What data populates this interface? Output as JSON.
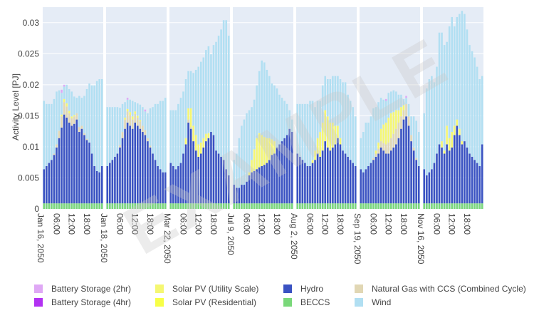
{
  "chart_data": {
    "type": "bar",
    "stacked": true,
    "ylabel": "Activity Level [PJ]",
    "ylim": [
      0,
      0.0325
    ],
    "yticks": [
      "0",
      "0.005",
      "0.01",
      "0.015",
      "0.02",
      "0.025",
      "0.03"
    ],
    "ytick_values": [
      0,
      0.005,
      0.01,
      0.015,
      0.02,
      0.025,
      0.03
    ],
    "panel_time_labels": [
      "06:00",
      "12:00",
      "18:00"
    ],
    "panels": [
      {
        "date": "Jan 16, 2050",
        "hydro": [
          0.0055,
          0.006,
          0.0065,
          0.007,
          0.0078,
          0.009,
          0.0105,
          0.0122,
          0.0143,
          0.0138,
          0.013,
          0.0125,
          0.0128,
          0.0135,
          0.0115,
          0.012,
          0.011,
          0.0102,
          0.0098,
          0.008,
          0.006,
          0.0052,
          0.005,
          0.006
        ],
        "gas": [
          0,
          0,
          0,
          0,
          0.0002,
          0.0005,
          0.0012,
          0.0018,
          0.002,
          0.0018,
          0.0015,
          0.0012,
          0.0012,
          0.001,
          0.0008,
          0.0005,
          0.0003,
          0.0002,
          0,
          0,
          0,
          0,
          0,
          0
        ],
        "solar": [
          0,
          0,
          0,
          0,
          0,
          0,
          0,
          0.0003,
          0.0005,
          0.0005,
          0.0004,
          0.0003,
          0.0002,
          0,
          0,
          0,
          0,
          0,
          0,
          0,
          0,
          0,
          0,
          0
        ],
        "wind": [
          0.011,
          0.01,
          0.0095,
          0.009,
          0.0088,
          0.0085,
          0.0065,
          0.0035,
          0.002,
          0.003,
          0.0035,
          0.004,
          0.003,
          0.0025,
          0.005,
          0.0045,
          0.006,
          0.008,
          0.0095,
          0.011,
          0.013,
          0.0145,
          0.015,
          0.014
        ],
        "battery": [
          0,
          0,
          0,
          0,
          0,
          0,
          0,
          0.0005,
          0.0003,
          0,
          0,
          0,
          0,
          0,
          0,
          0,
          0,
          0,
          0,
          0,
          0,
          0,
          0,
          0
        ]
      },
      {
        "date": "Jan 18, 2050",
        "hydro": [
          0.006,
          0.0065,
          0.007,
          0.0075,
          0.008,
          0.009,
          0.0105,
          0.012,
          0.013,
          0.0125,
          0.012,
          0.013,
          0.0125,
          0.012,
          0.0115,
          0.011,
          0.01,
          0.009,
          0.008,
          0.007,
          0.006,
          0.0055,
          0.005,
          0.005
        ],
        "gas": [
          0,
          0,
          0,
          0,
          0,
          0.0004,
          0.001,
          0.0015,
          0.0018,
          0.0017,
          0.0015,
          0.0014,
          0.0013,
          0.0012,
          0.001,
          0.0008,
          0.0005,
          0.0003,
          0,
          0,
          0,
          0,
          0,
          0
        ],
        "solar": [
          0,
          0,
          0,
          0,
          0,
          0,
          0,
          0.0003,
          0.0004,
          0.0005,
          0.0005,
          0.0004,
          0.0003,
          0.0002,
          0,
          0,
          0,
          0,
          0,
          0,
          0,
          0,
          0,
          0
        ],
        "wind": [
          0.0095,
          0.009,
          0.0085,
          0.008,
          0.0075,
          0.006,
          0.0045,
          0.0025,
          0.0015,
          0.002,
          0.0025,
          0.0015,
          0.002,
          0.0025,
          0.003,
          0.003,
          0.004,
          0.006,
          0.0075,
          0.009,
          0.01,
          0.011,
          0.0115,
          0.012
        ],
        "battery": [
          0,
          0,
          0,
          0,
          0,
          0,
          0,
          0,
          0.0003,
          0,
          0,
          0,
          0,
          0,
          0,
          0.0003,
          0,
          0,
          0,
          0,
          0,
          0,
          0,
          0
        ]
      },
      {
        "date": "Mar 22, 2050",
        "hydro": [
          0.0065,
          0.006,
          0.0055,
          0.006,
          0.0065,
          0.008,
          0.0095,
          0.013,
          0.012,
          0.01,
          0.0085,
          0.0075,
          0.008,
          0.009,
          0.01,
          0.0105,
          0.0115,
          0.011,
          0.0085,
          0.008,
          0.0075,
          0.007,
          0.0055,
          0.0045
        ],
        "gas": [
          0,
          0,
          0,
          0,
          0,
          0,
          0,
          0.0005,
          0.0003,
          0,
          0,
          0,
          0,
          0,
          0,
          0,
          0,
          0,
          0,
          0,
          0,
          0,
          0,
          0
        ],
        "solar": [
          0,
          0,
          0,
          0,
          0,
          0,
          0.001,
          0.0018,
          0.003,
          0.0025,
          0.0025,
          0.002,
          0.0018,
          0.0015,
          0.0012,
          0.0008,
          0,
          0,
          0,
          0,
          0,
          0,
          0,
          0
        ],
        "wind": [
          0.0085,
          0.009,
          0.0095,
          0.01,
          0.0105,
          0.01,
          0.0095,
          0.006,
          0.006,
          0.0085,
          0.0105,
          0.0125,
          0.013,
          0.013,
          0.0135,
          0.014,
          0.0125,
          0.0145,
          0.0175,
          0.019,
          0.0205,
          0.0225,
          0.024,
          0.0225
        ],
        "battery": [
          0,
          0,
          0,
          0,
          0,
          0,
          0,
          0,
          0,
          0,
          0,
          0,
          0,
          0,
          0,
          0,
          0,
          0,
          0,
          0,
          0,
          0,
          0,
          0
        ]
      },
      {
        "date": "Jul 9, 2050",
        "hydro": [
          0.003,
          0.0025,
          0.0025,
          0.003,
          0.003,
          0.0035,
          0.0045,
          0.005,
          0.0052,
          0.0055,
          0.0058,
          0.006,
          0.0062,
          0.0065,
          0.007,
          0.0078,
          0.008,
          0.009,
          0.0095,
          0.01,
          0.0105,
          0.011,
          0.012,
          0.0115
        ],
        "gas": [
          0,
          0,
          0,
          0,
          0,
          0,
          0,
          0,
          0,
          0,
          0,
          0,
          0,
          0,
          0,
          0,
          0,
          0,
          0,
          0,
          0,
          0,
          0,
          0
        ],
        "solar": [
          0,
          0,
          0,
          0,
          0,
          0,
          0.0005,
          0.002,
          0.0035,
          0.005,
          0.0055,
          0.005,
          0.0045,
          0.004,
          0.0035,
          0.0025,
          0.002,
          0,
          0,
          0,
          0,
          0,
          0,
          0
        ],
        "wind": [
          0.004,
          0.0055,
          0.008,
          0.0095,
          0.0105,
          0.011,
          0.01,
          0.0085,
          0.008,
          0.0085,
          0.01,
          0.012,
          0.012,
          0.011,
          0.01,
          0.009,
          0.009,
          0.0095,
          0.008,
          0.007,
          0.006,
          0.005,
          0.003,
          0.002
        ],
        "battery": [
          0,
          0,
          0,
          0,
          0,
          0,
          0,
          0,
          0,
          0,
          0,
          0,
          0,
          0,
          0,
          0,
          0,
          0,
          0,
          0,
          0,
          0,
          0,
          0
        ]
      },
      {
        "date": "Aug 2, 2050",
        "hydro": [
          0.008,
          0.0075,
          0.007,
          0.0065,
          0.006,
          0.006,
          0.0065,
          0.007,
          0.008,
          0.0075,
          0.0085,
          0.01,
          0.009,
          0.0085,
          0.009,
          0.0095,
          0.0105,
          0.0095,
          0.0085,
          0.008,
          0.0075,
          0.007,
          0.0065,
          0.006
        ],
        "gas": [
          0,
          0,
          0,
          0,
          0,
          0,
          0,
          0,
          0,
          0,
          0,
          0,
          0,
          0,
          0,
          0,
          0,
          0,
          0,
          0,
          0,
          0,
          0,
          0
        ],
        "solar": [
          0,
          0,
          0,
          0,
          0,
          0,
          0.0005,
          0.0015,
          0.0025,
          0.004,
          0.0045,
          0.005,
          0.005,
          0.0045,
          0.004,
          0.003,
          0.002,
          0.001,
          0,
          0,
          0,
          0,
          0,
          0
        ],
        "wind": [
          0.008,
          0.0085,
          0.009,
          0.0095,
          0.01,
          0.0105,
          0.0095,
          0.007,
          0.006,
          0.005,
          0.006,
          0.0055,
          0.006,
          0.007,
          0.0075,
          0.008,
          0.008,
          0.0095,
          0.011,
          0.0115,
          0.01,
          0.0095,
          0.009,
          0.008
        ],
        "battery": [
          0,
          0,
          0,
          0,
          0,
          0,
          0,
          0,
          0,
          0,
          0,
          0,
          0,
          0,
          0,
          0,
          0,
          0,
          0,
          0,
          0,
          0,
          0,
          0
        ]
      },
      {
        "date": "Sep 19, 2050",
        "hydro": [
          0.0055,
          0.005,
          0.0055,
          0.006,
          0.0065,
          0.007,
          0.0075,
          0.008,
          0.009,
          0.0085,
          0.008,
          0.008,
          0.0085,
          0.009,
          0.0095,
          0.0105,
          0.012,
          0.0135,
          0.014,
          0.0125,
          0.01,
          0.0085,
          0.007,
          0.006
        ],
        "gas": [
          0,
          0,
          0,
          0,
          0,
          0.0003,
          0.0005,
          0.0008,
          0.001,
          0.0012,
          0.0015,
          0.0018,
          0.002,
          0.0022,
          0.0025,
          0.0025,
          0.002,
          0.0015,
          0.002,
          0.0015,
          0.001,
          0.0005,
          0.0003,
          0
        ],
        "solar": [
          0,
          0,
          0,
          0,
          0,
          0,
          0.0005,
          0.001,
          0.002,
          0.003,
          0.0035,
          0.004,
          0.004,
          0.0035,
          0.003,
          0.002,
          0.0015,
          0.0008,
          0,
          0,
          0,
          0,
          0,
          0
        ],
        "wind": [
          0.005,
          0.0065,
          0.0075,
          0.007,
          0.0075,
          0.008,
          0.007,
          0.0065,
          0.005,
          0.004,
          0.0035,
          0.004,
          0.0035,
          0.0035,
          0.003,
          0.0025,
          0.002,
          0.001,
          0.001,
          0.002,
          0.003,
          0.005,
          0.006,
          0.0055
        ],
        "battery": [
          0,
          0,
          0,
          0,
          0,
          0,
          0,
          0,
          0,
          0,
          0.0003,
          0,
          0,
          0,
          0,
          0,
          0,
          0,
          0.0003,
          0,
          0,
          0,
          0,
          0
        ]
      },
      {
        "date": "Nov 16, 2050",
        "hydro": [
          0.0055,
          0.0045,
          0.005,
          0.0055,
          0.0065,
          0.008,
          0.0095,
          0.009,
          0.008,
          0.0095,
          0.0085,
          0.009,
          0.011,
          0.0125,
          0.011,
          0.0095,
          0.01,
          0.009,
          0.008,
          0.0075,
          0.007,
          0.0065,
          0.006,
          0.0095
        ],
        "gas": [
          0,
          0,
          0,
          0,
          0,
          0,
          0,
          0,
          0,
          0,
          0,
          0,
          0,
          0,
          0,
          0,
          0,
          0,
          0,
          0,
          0,
          0,
          0,
          0
        ],
        "solar": [
          0,
          0,
          0,
          0,
          0,
          0,
          0,
          0.001,
          0.0005,
          0.003,
          0.002,
          0.0025,
          0.0015,
          0.001,
          0.001,
          0.0005,
          0,
          0,
          0,
          0,
          0,
          0,
          0,
          0
        ],
        "wind": [
          0.009,
          0.014,
          0.015,
          0.015,
          0.013,
          0.014,
          0.018,
          0.0175,
          0.017,
          0.0135,
          0.018,
          0.0185,
          0.016,
          0.0165,
          0.0185,
          0.021,
          0.0205,
          0.019,
          0.0175,
          0.017,
          0.0165,
          0.0155,
          0.014,
          0.011
        ],
        "battery": [
          0,
          0,
          0,
          0,
          0,
          0,
          0,
          0,
          0,
          0,
          0,
          0,
          0,
          0,
          0,
          0,
          0,
          0,
          0,
          0,
          0,
          0,
          0,
          0
        ]
      }
    ],
    "bec_value": 0.0009,
    "legend": [
      {
        "label": "Battery Storage (2hr)",
        "color": "#dfa8f5"
      },
      {
        "label": "Battery Storage (4hr)",
        "color": "#b231f2"
      },
      {
        "label": "Solar PV (Utility Scale)",
        "color": "#f5f772"
      },
      {
        "label": "Solar PV (Residential)",
        "color": "#f7ff47"
      },
      {
        "label": "Hydro",
        "color": "#3a52c2"
      },
      {
        "label": "BECCS",
        "color": "#7ad87a"
      },
      {
        "label": "Natural Gas with CCS (Combined Cycle)",
        "color": "#e1d7b4"
      },
      {
        "label": "Wind",
        "color": "#b1dff2"
      }
    ],
    "legend_placement": "bottom",
    "grid": true,
    "watermark": "EXAMPLE"
  }
}
